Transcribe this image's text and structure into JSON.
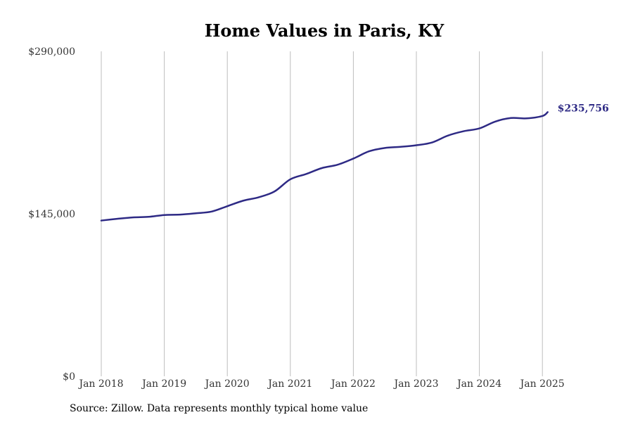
{
  "chart_data": {
    "type": "line",
    "title": "Home Values in Paris, KY",
    "xlabel": "",
    "ylabel": "",
    "ylim": [
      0,
      290000
    ],
    "xlim": [
      "2018-01",
      "2025-04"
    ],
    "y_ticks": [
      {
        "value": 0,
        "label": "$0"
      },
      {
        "value": 145000,
        "label": "$145,000"
      },
      {
        "value": 290000,
        "label": "$290,000"
      }
    ],
    "x_ticks": [
      {
        "value": "2018-01",
        "label": "Jan 2018"
      },
      {
        "value": "2019-01",
        "label": "Jan 2019"
      },
      {
        "value": "2020-01",
        "label": "Jan 2020"
      },
      {
        "value": "2021-01",
        "label": "Jan 2021"
      },
      {
        "value": "2022-01",
        "label": "Jan 2022"
      },
      {
        "value": "2023-01",
        "label": "Jan 2023"
      },
      {
        "value": "2024-01",
        "label": "Jan 2024"
      },
      {
        "value": "2025-01",
        "label": "Jan 2025"
      }
    ],
    "vertical_grid": true,
    "horizontal_grid": false,
    "line_color": "#2e2a85",
    "series": [
      {
        "values": [
          {
            "x": "2018-01",
            "y": 139000
          },
          {
            "x": "2018-04",
            "y": 140500
          },
          {
            "x": "2018-07",
            "y": 141800
          },
          {
            "x": "2018-10",
            "y": 142300
          },
          {
            "x": "2019-01",
            "y": 143900
          },
          {
            "x": "2019-04",
            "y": 144300
          },
          {
            "x": "2019-07",
            "y": 145500
          },
          {
            "x": "2019-10",
            "y": 147000
          },
          {
            "x": "2020-01",
            "y": 151800
          },
          {
            "x": "2020-04",
            "y": 156700
          },
          {
            "x": "2020-07",
            "y": 159800
          },
          {
            "x": "2020-10",
            "y": 165000
          },
          {
            "x": "2021-01",
            "y": 175800
          },
          {
            "x": "2021-04",
            "y": 180500
          },
          {
            "x": "2021-07",
            "y": 185800
          },
          {
            "x": "2021-10",
            "y": 188800
          },
          {
            "x": "2022-01",
            "y": 194300
          },
          {
            "x": "2022-04",
            "y": 200800
          },
          {
            "x": "2022-07",
            "y": 203800
          },
          {
            "x": "2022-10",
            "y": 204800
          },
          {
            "x": "2023-01",
            "y": 206200
          },
          {
            "x": "2023-04",
            "y": 208700
          },
          {
            "x": "2023-07",
            "y": 214800
          },
          {
            "x": "2023-10",
            "y": 218700
          },
          {
            "x": "2024-01",
            "y": 221200
          },
          {
            "x": "2024-04",
            "y": 227300
          },
          {
            "x": "2024-07",
            "y": 230500
          },
          {
            "x": "2024-10",
            "y": 230200
          },
          {
            "x": "2025-01",
            "y": 232300
          },
          {
            "x": "2025-02",
            "y": 235756
          }
        ]
      }
    ],
    "end_label": "$235,756"
  },
  "source_note": "Source: Zillow. Data represents monthly typical home value"
}
